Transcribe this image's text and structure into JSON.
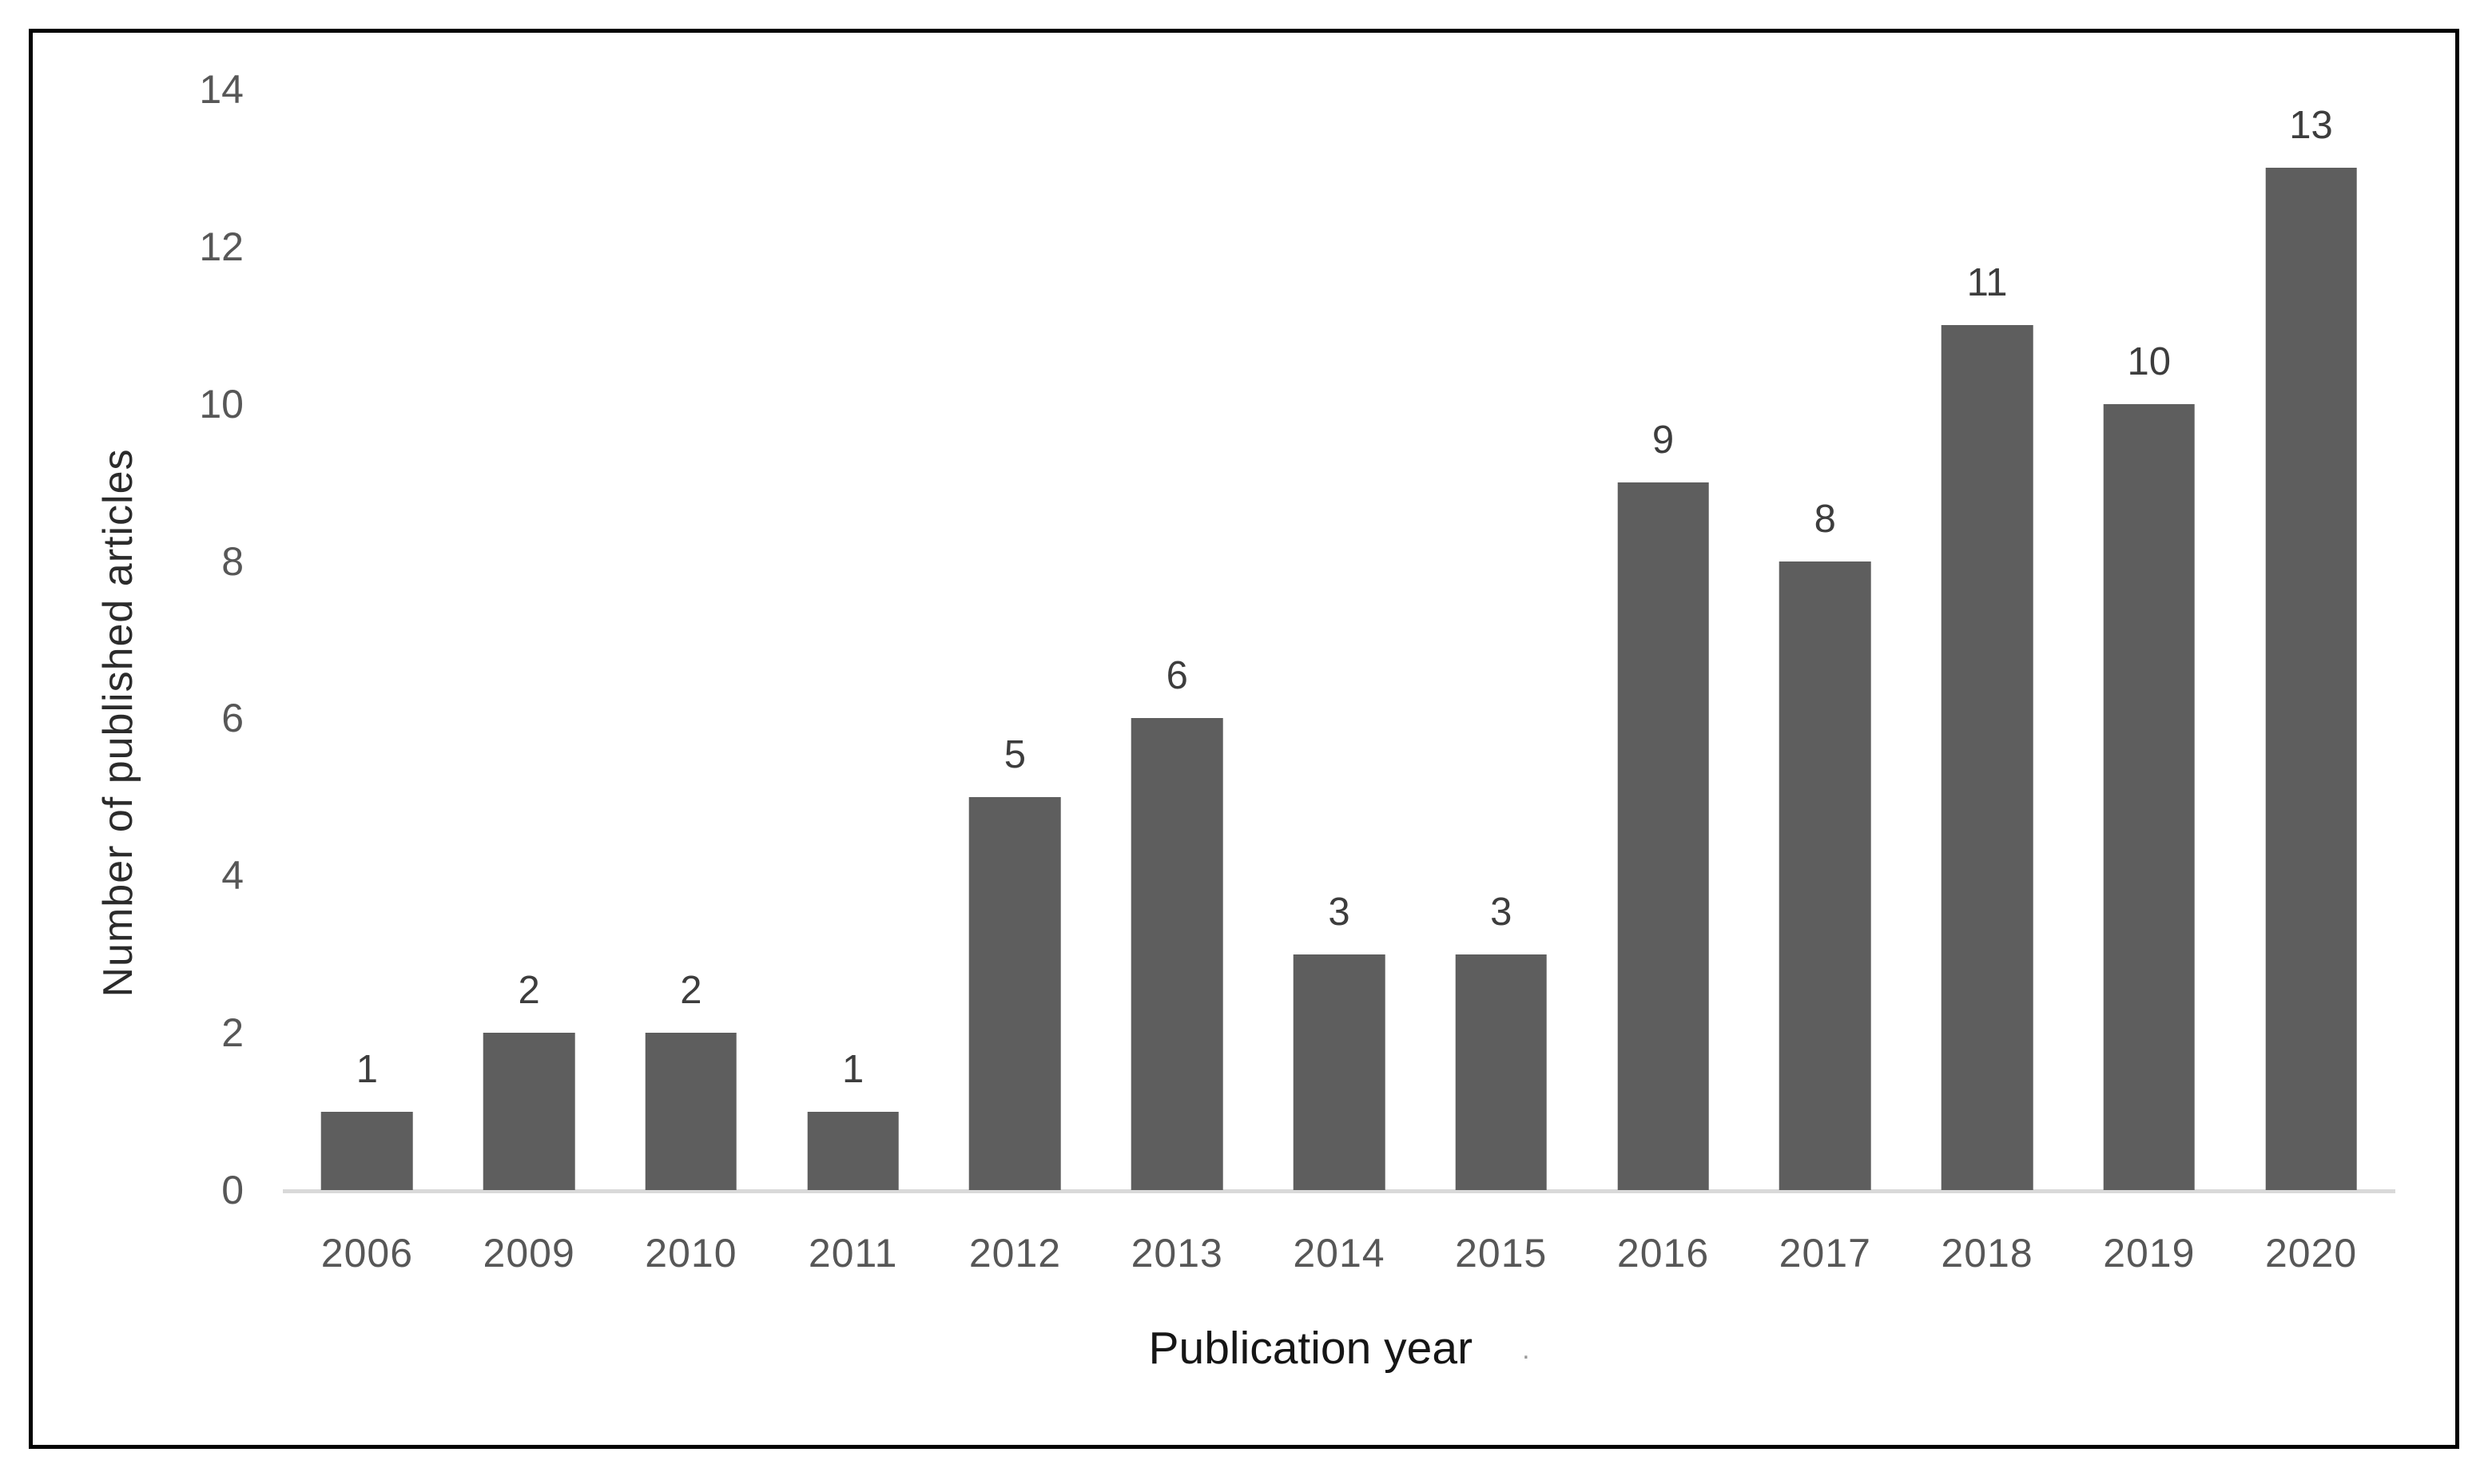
{
  "chart_data": {
    "type": "bar",
    "title": "",
    "categories": [
      "2006",
      "2009",
      "2010",
      "2011",
      "2012",
      "2013",
      "2014",
      "2015",
      "2016",
      "2017",
      "2018",
      "2019",
      "2020"
    ],
    "values": [
      1,
      2,
      2,
      1,
      5,
      6,
      3,
      3,
      9,
      8,
      11,
      10,
      13
    ],
    "data_labels": [
      "1",
      "2",
      "2",
      "1",
      "5",
      "6",
      "3",
      "3",
      "9",
      "8",
      "11",
      "10",
      "13"
    ],
    "xlabel": "Publication year",
    "ylabel": "Number of published articles",
    "ylim": [
      0,
      14
    ],
    "ytick_step": 2,
    "ytick_labels": [
      "0",
      "2",
      "4",
      "6",
      "8",
      "10",
      "12",
      "14"
    ],
    "grid": false,
    "legend": "none",
    "bar_color": "#5e5e5e",
    "axis_line_color": "#d9d9d9",
    "tick_label_color": "#575757",
    "data_label_color": "#3d3d3d",
    "frame_color": "#010101",
    "background_color": "#ffffff"
  },
  "annotations": {
    "stray_mark": "."
  }
}
